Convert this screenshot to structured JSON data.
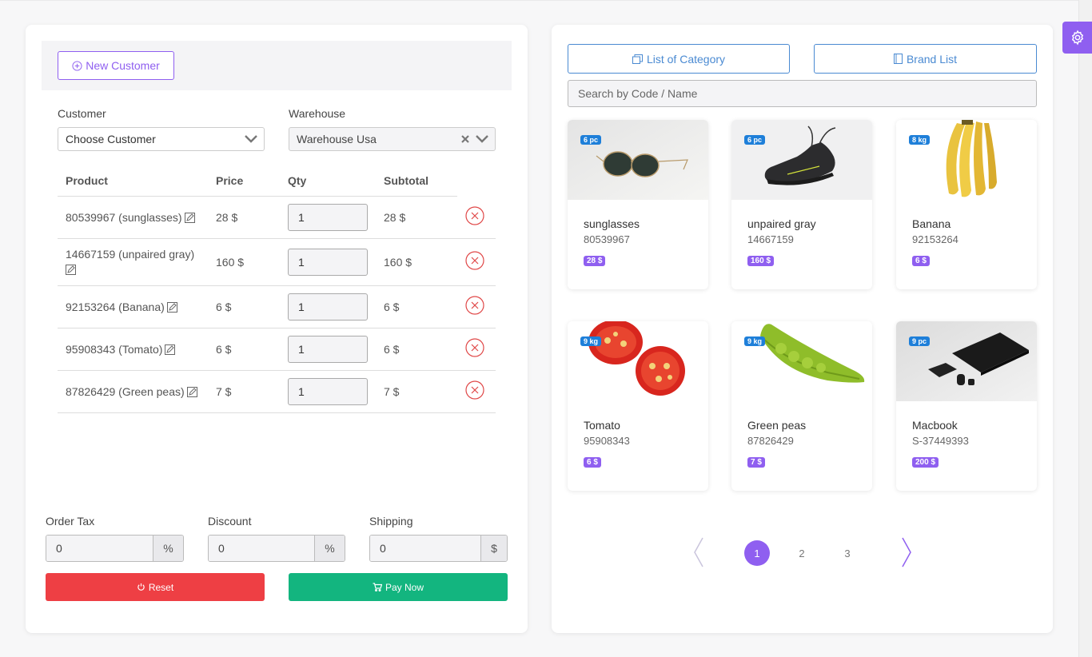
{
  "left": {
    "new_customer_label": "New Customer",
    "customer_label": "Customer",
    "customer_value": "Choose Customer",
    "warehouse_label": "Warehouse",
    "warehouse_value": "Warehouse Usa",
    "headers": [
      "Product",
      "Price",
      "Qty",
      "Subtotal"
    ],
    "rows": [
      {
        "product": "80539967 (sunglasses)",
        "price": "28 $",
        "qty": "1",
        "subtotal": "28 $"
      },
      {
        "product": "14667159 (unpaired gray)",
        "price": "160 $",
        "qty": "1",
        "subtotal": "160 $"
      },
      {
        "product": "92153264 (Banana)",
        "price": "6 $",
        "qty": "1",
        "subtotal": "6 $"
      },
      {
        "product": "95908343 (Tomato)",
        "price": "6 $",
        "qty": "1",
        "subtotal": "6 $"
      },
      {
        "product": "87826429 (Green peas)",
        "price": "7 $",
        "qty": "1",
        "subtotal": "7 $"
      }
    ],
    "order_tax_label": "Order Tax",
    "order_tax_value": "0",
    "order_tax_unit": "%",
    "discount_label": "Discount",
    "discount_value": "0",
    "discount_unit": "%",
    "shipping_label": "Shipping",
    "shipping_value": "0",
    "shipping_unit": "$",
    "reset_label": "Reset",
    "pay_label": "Pay Now"
  },
  "right": {
    "category_label": "List of Category",
    "brand_label": "Brand List",
    "search_placeholder": "Search by Code / Name",
    "products": [
      {
        "name": "sunglasses",
        "code": "80539967",
        "price": "28 $",
        "stock": "6 pc"
      },
      {
        "name": "unpaired gray",
        "code": "14667159",
        "price": "160 $",
        "stock": "6 pc"
      },
      {
        "name": "Banana",
        "code": "92153264",
        "price": "6 $",
        "stock": "8 kg"
      },
      {
        "name": "Tomato",
        "code": "95908343",
        "price": "6 $",
        "stock": "9 kg"
      },
      {
        "name": "Green peas",
        "code": "87826429",
        "price": "7 $",
        "stock": "9 kg"
      },
      {
        "name": "Macbook",
        "code": "S-37449393",
        "price": "200 $",
        "stock": "9 pc"
      }
    ],
    "pages": [
      "1",
      "2",
      "3"
    ],
    "active_page": "1"
  },
  "colors": {
    "accent": "#8f5ff0",
    "blue": "#4a8ad2",
    "danger": "#ee3f44",
    "success": "#13b57f"
  }
}
